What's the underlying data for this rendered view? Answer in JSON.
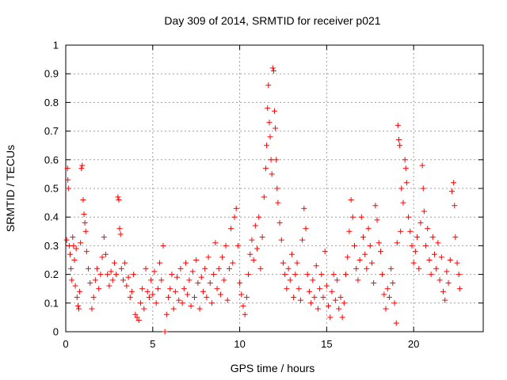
{
  "chart_data": {
    "type": "scatter",
    "title": "Day 309 of 2014, SRMTID for receiver p021",
    "xlabel": "GPS time / hours",
    "ylabel": "SRMTID / TECUs",
    "xlim": [
      0,
      24
    ],
    "ylim": [
      0,
      1
    ],
    "xticks": [
      0,
      5,
      10,
      15,
      20
    ],
    "yticks": [
      0,
      0.1,
      0.2,
      0.3,
      0.4,
      0.5,
      0.6,
      0.7,
      0.8,
      0.9,
      1
    ],
    "xtick_labels": [
      "0",
      "5",
      "10",
      "15",
      "20"
    ],
    "ytick_labels": [
      "0",
      "0.1",
      "0.2",
      "0.3",
      "0.4",
      "0.5",
      "0.6",
      "0.7",
      "0.8",
      "0.9",
      "1"
    ],
    "grid": true,
    "marker": "+",
    "color": "#ff0000",
    "series": [
      {
        "name": "SRMTID",
        "points": [
          [
            0.05,
            0.32
          ],
          [
            0.1,
            0.57
          ],
          [
            0.12,
            0.53
          ],
          [
            0.15,
            0.5
          ],
          [
            0.2,
            0.3
          ],
          [
            0.25,
            0.27
          ],
          [
            0.3,
            0.22
          ],
          [
            0.35,
            0.18
          ],
          [
            0.4,
            0.33
          ],
          [
            0.45,
            0.3
          ],
          [
            0.5,
            0.25
          ],
          [
            0.55,
            0.16
          ],
          [
            0.6,
            0.29
          ],
          [
            0.65,
            0.12
          ],
          [
            0.7,
            0.09
          ],
          [
            0.75,
            0.08
          ],
          [
            0.8,
            0.14
          ],
          [
            0.85,
            0.31
          ],
          [
            0.9,
            0.57
          ],
          [
            0.95,
            0.58
          ],
          [
            1.0,
            0.46
          ],
          [
            1.05,
            0.41
          ],
          [
            1.1,
            0.38
          ],
          [
            1.15,
            0.35
          ],
          [
            1.2,
            0.28
          ],
          [
            1.3,
            0.22
          ],
          [
            1.4,
            0.17
          ],
          [
            1.5,
            0.08
          ],
          [
            1.6,
            0.12
          ],
          [
            1.7,
            0.18
          ],
          [
            1.8,
            0.22
          ],
          [
            1.9,
            0.15
          ],
          [
            2.0,
            0.2
          ],
          [
            2.1,
            0.26
          ],
          [
            2.2,
            0.33
          ],
          [
            2.3,
            0.27
          ],
          [
            2.4,
            0.2
          ],
          [
            2.5,
            0.16
          ],
          [
            2.6,
            0.21
          ],
          [
            2.7,
            0.18
          ],
          [
            2.8,
            0.24
          ],
          [
            2.9,
            0.2
          ],
          [
            3.0,
            0.47
          ],
          [
            3.05,
            0.46
          ],
          [
            3.1,
            0.36
          ],
          [
            3.15,
            0.34
          ],
          [
            3.2,
            0.22
          ],
          [
            3.3,
            0.18
          ],
          [
            3.4,
            0.24
          ],
          [
            3.5,
            0.16
          ],
          [
            3.6,
            0.19
          ],
          [
            3.7,
            0.12
          ],
          [
            3.8,
            0.14
          ],
          [
            3.9,
            0.2
          ],
          [
            4.0,
            0.06
          ],
          [
            4.1,
            0.05
          ],
          [
            4.2,
            0.04
          ],
          [
            4.3,
            0.1
          ],
          [
            4.4,
            0.15
          ],
          [
            4.5,
            0.08
          ],
          [
            4.6,
            0.22
          ],
          [
            4.7,
            0.14
          ],
          [
            4.8,
            0.12
          ],
          [
            4.9,
            0.18
          ],
          [
            5.0,
            0.13
          ],
          [
            5.1,
            0.21
          ],
          [
            5.2,
            0.1
          ],
          [
            5.3,
            0.15
          ],
          [
            5.4,
            0.24
          ],
          [
            5.5,
            0.18
          ],
          [
            5.6,
            0.3
          ],
          [
            5.7,
            0.0
          ],
          [
            5.8,
            0.06
          ],
          [
            5.9,
            0.12
          ],
          [
            6.0,
            0.15
          ],
          [
            6.1,
            0.2
          ],
          [
            6.2,
            0.08
          ],
          [
            6.3,
            0.14
          ],
          [
            6.4,
            0.19
          ],
          [
            6.5,
            0.11
          ],
          [
            6.6,
            0.22
          ],
          [
            6.7,
            0.1
          ],
          [
            6.8,
            0.15
          ],
          [
            6.9,
            0.24
          ],
          [
            7.0,
            0.13
          ],
          [
            7.1,
            0.18
          ],
          [
            7.2,
            0.09
          ],
          [
            7.3,
            0.21
          ],
          [
            7.4,
            0.12
          ],
          [
            7.5,
            0.25
          ],
          [
            7.6,
            0.17
          ],
          [
            7.7,
            0.08
          ],
          [
            7.8,
            0.19
          ],
          [
            7.9,
            0.14
          ],
          [
            8.0,
            0.22
          ],
          [
            8.1,
            0.12
          ],
          [
            8.2,
            0.26
          ],
          [
            8.3,
            0.17
          ],
          [
            8.4,
            0.1
          ],
          [
            8.5,
            0.2
          ],
          [
            8.6,
            0.31
          ],
          [
            8.7,
            0.15
          ],
          [
            8.8,
            0.22
          ],
          [
            8.9,
            0.13
          ],
          [
            9.0,
            0.26
          ],
          [
            9.1,
            0.18
          ],
          [
            9.2,
            0.3
          ],
          [
            9.3,
            0.11
          ],
          [
            9.4,
            0.22
          ],
          [
            9.5,
            0.36
          ],
          [
            9.6,
            0.24
          ],
          [
            9.7,
            0.4
          ],
          [
            9.8,
            0.43
          ],
          [
            9.9,
            0.3
          ],
          [
            10.0,
            0.17
          ],
          [
            10.1,
            0.13
          ],
          [
            10.2,
            0.09
          ],
          [
            10.3,
            0.06
          ],
          [
            10.4,
            0.12
          ],
          [
            10.5,
            0.2
          ],
          [
            10.6,
            0.27
          ],
          [
            10.7,
            0.32
          ],
          [
            10.8,
            0.25
          ],
          [
            10.9,
            0.37
          ],
          [
            11.0,
            0.29
          ],
          [
            11.1,
            0.4
          ],
          [
            11.2,
            0.22
          ],
          [
            11.3,
            0.33
          ],
          [
            11.4,
            0.47
          ],
          [
            11.5,
            0.57
          ],
          [
            11.55,
            0.65
          ],
          [
            11.6,
            0.78
          ],
          [
            11.65,
            0.86
          ],
          [
            11.7,
            0.73
          ],
          [
            11.75,
            0.68
          ],
          [
            11.8,
            0.6
          ],
          [
            11.85,
            0.55
          ],
          [
            11.9,
            0.92
          ],
          [
            11.95,
            0.91
          ],
          [
            12.0,
            0.77
          ],
          [
            12.05,
            0.71
          ],
          [
            12.1,
            0.6
          ],
          [
            12.15,
            0.5
          ],
          [
            12.2,
            0.45
          ],
          [
            12.3,
            0.38
          ],
          [
            12.4,
            0.32
          ],
          [
            12.5,
            0.24
          ],
          [
            12.6,
            0.2
          ],
          [
            12.7,
            0.15
          ],
          [
            12.8,
            0.22
          ],
          [
            12.9,
            0.18
          ],
          [
            13.0,
            0.27
          ],
          [
            13.1,
            0.12
          ],
          [
            13.2,
            0.2
          ],
          [
            13.3,
            0.24
          ],
          [
            13.4,
            0.15
          ],
          [
            13.5,
            0.11
          ],
          [
            13.6,
            0.32
          ],
          [
            13.7,
            0.43
          ],
          [
            13.8,
            0.36
          ],
          [
            13.9,
            0.2
          ],
          [
            14.0,
            0.14
          ],
          [
            14.1,
            0.1
          ],
          [
            14.2,
            0.18
          ],
          [
            14.3,
            0.12
          ],
          [
            14.4,
            0.23
          ],
          [
            14.5,
            0.08
          ],
          [
            14.6,
            0.15
          ],
          [
            14.7,
            0.2
          ],
          [
            14.8,
            0.12
          ],
          [
            14.9,
            0.28
          ],
          [
            15.0,
            0.16
          ],
          [
            15.1,
            0.09
          ],
          [
            15.2,
            0.05
          ],
          [
            15.3,
            0.14
          ],
          [
            15.4,
            0.2
          ],
          [
            15.5,
            0.11
          ],
          [
            15.6,
            0.18
          ],
          [
            15.7,
            0.08
          ],
          [
            15.8,
            0.12
          ],
          [
            15.9,
            0.05
          ],
          [
            16.0,
            0.1
          ],
          [
            16.1,
            0.2
          ],
          [
            16.2,
            0.26
          ],
          [
            16.3,
            0.35
          ],
          [
            16.4,
            0.46
          ],
          [
            16.5,
            0.4
          ],
          [
            16.6,
            0.3
          ],
          [
            16.7,
            0.22
          ],
          [
            16.8,
            0.18
          ],
          [
            16.9,
            0.25
          ],
          [
            17.0,
            0.4
          ],
          [
            17.1,
            0.33
          ],
          [
            17.2,
            0.27
          ],
          [
            17.3,
            0.22
          ],
          [
            17.4,
            0.36
          ],
          [
            17.5,
            0.3
          ],
          [
            17.6,
            0.24
          ],
          [
            17.7,
            0.17
          ],
          [
            17.8,
            0.44
          ],
          [
            17.9,
            0.39
          ],
          [
            18.0,
            0.31
          ],
          [
            18.1,
            0.28
          ],
          [
            18.2,
            0.2
          ],
          [
            18.3,
            0.13
          ],
          [
            18.4,
            0.08
          ],
          [
            18.5,
            0.15
          ],
          [
            18.6,
            0.12
          ],
          [
            18.7,
            0.22
          ],
          [
            18.8,
            0.17
          ],
          [
            18.9,
            0.1
          ],
          [
            19.0,
            0.03
          ],
          [
            19.05,
            0.31
          ],
          [
            19.1,
            0.72
          ],
          [
            19.15,
            0.67
          ],
          [
            19.2,
            0.65
          ],
          [
            19.25,
            0.35
          ],
          [
            19.3,
            0.5
          ],
          [
            19.4,
            0.45
          ],
          [
            19.5,
            0.6
          ],
          [
            19.55,
            0.57
          ],
          [
            19.6,
            0.52
          ],
          [
            19.7,
            0.4
          ],
          [
            19.8,
            0.35
          ],
          [
            19.9,
            0.3
          ],
          [
            20.0,
            0.24
          ],
          [
            20.1,
            0.28
          ],
          [
            20.2,
            0.33
          ],
          [
            20.3,
            0.22
          ],
          [
            20.4,
            0.38
          ],
          [
            20.5,
            0.58
          ],
          [
            20.55,
            0.5
          ],
          [
            20.6,
            0.42
          ],
          [
            20.7,
            0.3
          ],
          [
            20.8,
            0.36
          ],
          [
            20.9,
            0.25
          ],
          [
            21.0,
            0.2
          ],
          [
            21.1,
            0.33
          ],
          [
            21.2,
            0.27
          ],
          [
            21.3,
            0.22
          ],
          [
            21.4,
            0.31
          ],
          [
            21.5,
            0.18
          ],
          [
            21.6,
            0.26
          ],
          [
            21.7,
            0.14
          ],
          [
            21.8,
            0.11
          ],
          [
            21.9,
            0.21
          ],
          [
            22.0,
            0.17
          ],
          [
            22.1,
            0.25
          ],
          [
            22.2,
            0.49
          ],
          [
            22.3,
            0.52
          ],
          [
            22.35,
            0.44
          ],
          [
            22.4,
            0.33
          ],
          [
            22.5,
            0.24
          ],
          [
            22.6,
            0.2
          ],
          [
            22.65,
            0.15
          ]
        ]
      }
    ]
  }
}
